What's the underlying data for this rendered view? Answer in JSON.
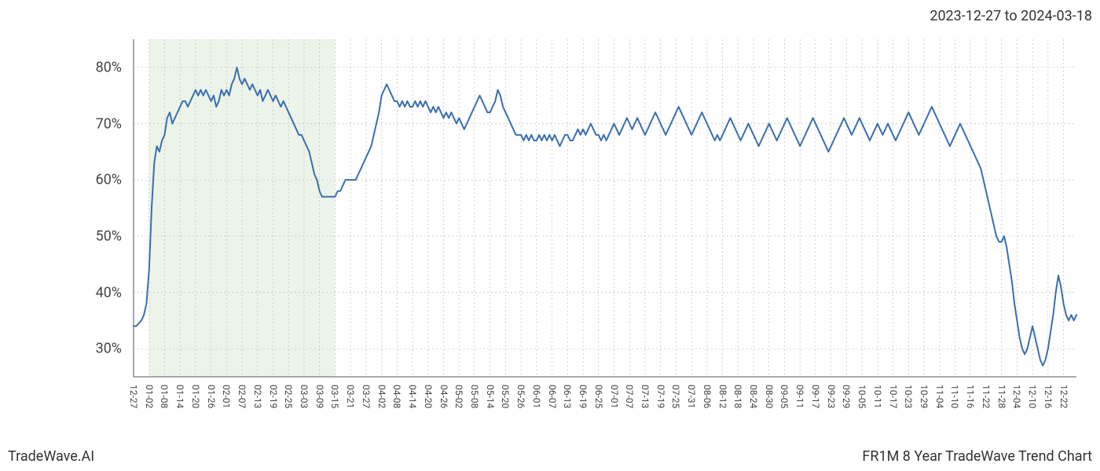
{
  "header": {
    "date_range": "2023-12-27 to 2024-03-18"
  },
  "footer": {
    "left": "TradeWave.AI",
    "right": "FR1M 8 Year TradeWave Trend Chart"
  },
  "chart": {
    "type": "line",
    "line_color": "#3a6fb0",
    "line_width": 2,
    "background_color": "#ffffff",
    "highlight": {
      "fill": "#dce9d5",
      "opacity": 0.55,
      "x_start_index": 1,
      "x_end_index": 13
    },
    "grid": {
      "minor_color": "#bfbfbf",
      "minor_dash": "2,3",
      "major_color": "#bfbfbf",
      "border_color": "#555555"
    },
    "y_axis": {
      "min": 25,
      "max": 85,
      "ticks": [
        30,
        40,
        50,
        60,
        70,
        80
      ],
      "tick_labels": [
        "30%",
        "40%",
        "50%",
        "60%",
        "70%",
        "80%"
      ],
      "label_fontsize": 18
    },
    "x_axis": {
      "labels": [
        "12-27",
        "01-02",
        "01-08",
        "01-14",
        "01-20",
        "01-26",
        "02-01",
        "02-07",
        "02-13",
        "02-19",
        "02-25",
        "03-03",
        "03-09",
        "03-15",
        "03-21",
        "03-27",
        "04-02",
        "04-08",
        "04-14",
        "04-20",
        "04-26",
        "05-02",
        "05-08",
        "05-14",
        "05-20",
        "05-26",
        "06-01",
        "06-07",
        "06-13",
        "06-19",
        "06-25",
        "07-01",
        "07-07",
        "07-13",
        "07-19",
        "07-25",
        "07-31",
        "08-06",
        "08-12",
        "08-18",
        "08-24",
        "08-30",
        "09-05",
        "09-11",
        "09-17",
        "09-23",
        "09-29",
        "10-05",
        "10-11",
        "10-17",
        "10-23",
        "10-29",
        "11-04",
        "11-10",
        "11-16",
        "11-22",
        "11-28",
        "12-04",
        "12-10",
        "12-16",
        "12-22"
      ],
      "label_fontsize": 12
    },
    "series": {
      "points_per_label": 6,
      "values": [
        34,
        34,
        34.5,
        35,
        36,
        38,
        44,
        55,
        63,
        66,
        65,
        67,
        68,
        71,
        72,
        70,
        71,
        72,
        73,
        74,
        74,
        73,
        74,
        75,
        76,
        75,
        76,
        75,
        76,
        75,
        74,
        75,
        73,
        74,
        76,
        75,
        76,
        75,
        77,
        78,
        80,
        78,
        77,
        78,
        77,
        76,
        77,
        76,
        75,
        76,
        74,
        75,
        76,
        75,
        74,
        75,
        74,
        73,
        74,
        73,
        72,
        71,
        70,
        69,
        68,
        68,
        67,
        66,
        65,
        63,
        61,
        60,
        58,
        57,
        57,
        57,
        57,
        57,
        57,
        58,
        58,
        59,
        60,
        60,
        60,
        60,
        60,
        61,
        62,
        63,
        64,
        65,
        66,
        68,
        70,
        72,
        75,
        76,
        77,
        76,
        75,
        74,
        74,
        73,
        74,
        73,
        74,
        73,
        73,
        74,
        73,
        74,
        73,
        74,
        73,
        72,
        73,
        72,
        73,
        72,
        71,
        72,
        71,
        72,
        71,
        70,
        71,
        70,
        69,
        70,
        71,
        72,
        73,
        74,
        75,
        74,
        73,
        72,
        72,
        73,
        74,
        76,
        75,
        73,
        72,
        71,
        70,
        69,
        68,
        68,
        68,
        67,
        68,
        67,
        68,
        67,
        67,
        68,
        67,
        68,
        67,
        68,
        67,
        68,
        67,
        66,
        67,
        68,
        68,
        67,
        67,
        68,
        69,
        68,
        69,
        68,
        69,
        70,
        69,
        68,
        68,
        67,
        68,
        67,
        68,
        69,
        70,
        69,
        68,
        69,
        70,
        71,
        70,
        69,
        70,
        71,
        70,
        69,
        68,
        69,
        70,
        71,
        72,
        71,
        70,
        69,
        68,
        69,
        70,
        71,
        72,
        73,
        72,
        71,
        70,
        69,
        68,
        69,
        70,
        71,
        72,
        71,
        70,
        69,
        68,
        67,
        68,
        67,
        68,
        69,
        70,
        71,
        70,
        69,
        68,
        67,
        68,
        69,
        70,
        69,
        68,
        67,
        66,
        67,
        68,
        69,
        70,
        69,
        68,
        67,
        68,
        69,
        70,
        71,
        70,
        69,
        68,
        67,
        66,
        67,
        68,
        69,
        70,
        71,
        70,
        69,
        68,
        67,
        66,
        65,
        66,
        67,
        68,
        69,
        70,
        71,
        70,
        69,
        68,
        69,
        70,
        71,
        70,
        69,
        68,
        67,
        68,
        69,
        70,
        69,
        68,
        69,
        70,
        69,
        68,
        67,
        68,
        69,
        70,
        71,
        72,
        71,
        70,
        69,
        68,
        69,
        70,
        71,
        72,
        73,
        72,
        71,
        70,
        69,
        68,
        67,
        66,
        67,
        68,
        69,
        70,
        69,
        68,
        67,
        66,
        65,
        64,
        63,
        62,
        60,
        58,
        56,
        54,
        52,
        50,
        49,
        49,
        50,
        48,
        45,
        42,
        38,
        35,
        32,
        30,
        29,
        30,
        32,
        34,
        32,
        30,
        28,
        27,
        28,
        30,
        33,
        36,
        40,
        43,
        41,
        38,
        36,
        35,
        36,
        35,
        36
      ]
    }
  }
}
